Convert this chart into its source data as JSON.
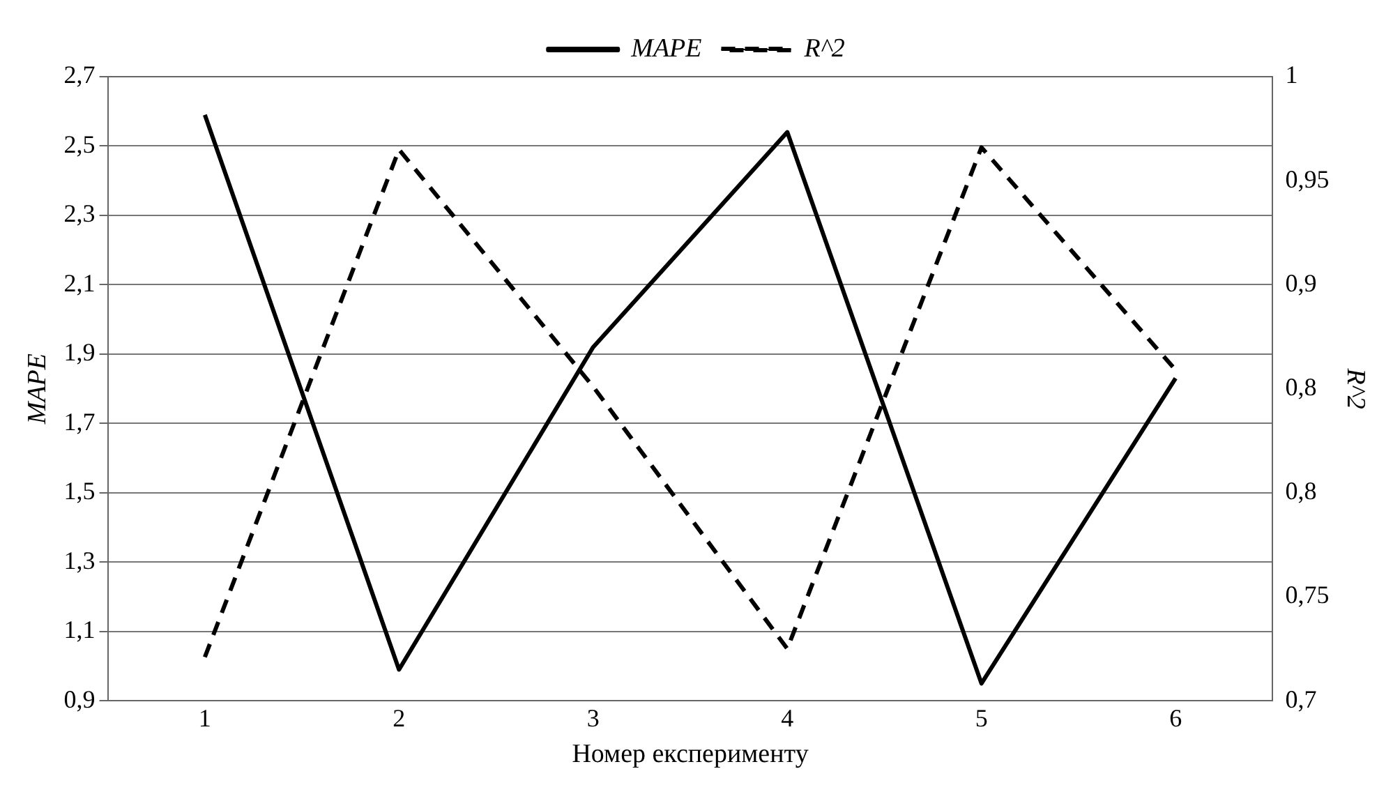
{
  "chart_data": {
    "type": "line",
    "xlabel": "Номер експерименту",
    "ylabel": "MAPE",
    "y2label": "R^2",
    "categories": [
      "1",
      "2",
      "3",
      "4",
      "5",
      "6"
    ],
    "series": [
      {
        "name": "MAPE",
        "color": "#000000",
        "line_style": "solid",
        "values": [
          2.59,
          0.99,
          1.92,
          2.54,
          0.95,
          1.83
        ]
      },
      {
        "name": "R^2",
        "color": "#000000",
        "line_style": "dashed",
        "axis": "y2",
        "values": [
          0.721,
          0.965,
          0.851,
          0.725,
          0.966,
          0.859
        ]
      }
    ],
    "ylim": [
      0.9,
      2.7
    ],
    "yticks": [
      {
        "value": 0.9,
        "label": "0,9"
      },
      {
        "value": 1.1,
        "label": "1,1"
      },
      {
        "value": 1.3,
        "label": "1,3"
      },
      {
        "value": 1.5,
        "label": "1,5"
      },
      {
        "value": 1.7,
        "label": "1,7"
      },
      {
        "value": 1.9,
        "label": "1,9"
      },
      {
        "value": 2.1,
        "label": "2,1"
      },
      {
        "value": 2.3,
        "label": "2,3"
      },
      {
        "value": 2.5,
        "label": "2,5"
      },
      {
        "value": 2.7,
        "label": "2,7"
      }
    ],
    "y2lim": [
      0.7,
      1
    ],
    "y2ticks": [
      {
        "value": 0.7,
        "label": "0,7"
      },
      {
        "value": 0.75,
        "label": "0,75"
      },
      {
        "value": 0.8,
        "label": "0,8"
      },
      {
        "value": 0.85,
        "label": "0,8"
      },
      {
        "value": 0.9,
        "label": "0,9"
      },
      {
        "value": 0.95,
        "label": "0,95"
      },
      1
    ],
    "grid": "y",
    "legend": "top",
    "marker": "none"
  }
}
